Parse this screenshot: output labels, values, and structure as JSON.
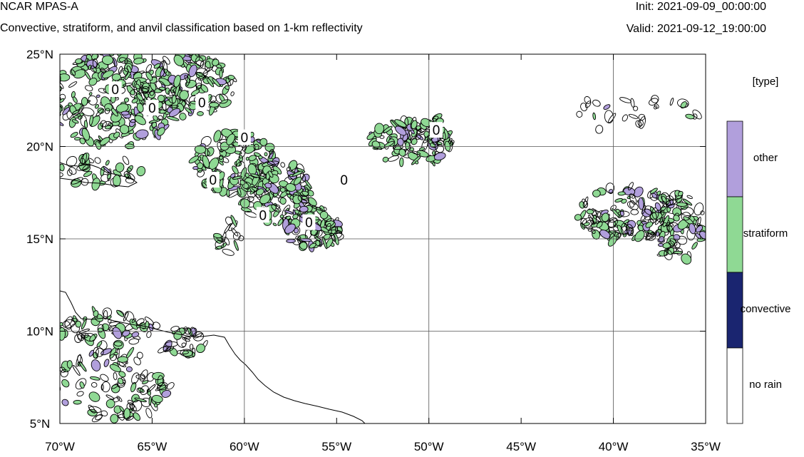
{
  "header": {
    "model": "NCAR MPAS-A",
    "description": "Convective, stratiform, and anvil classification based on 1-km reflectivity",
    "init": "Init: 2021-09-09_00:00:00",
    "valid": "Valid: 2021-09-12_19:00:00"
  },
  "map": {
    "lon_range": [
      -70,
      -35
    ],
    "lat_range": [
      5,
      25
    ],
    "lon_ticks": [
      {
        "value": -70,
        "label": "70°W"
      },
      {
        "value": -65,
        "label": "65°W"
      },
      {
        "value": -60,
        "label": "60°W"
      },
      {
        "value": -55,
        "label": "55°W"
      },
      {
        "value": -50,
        "label": "50°W"
      },
      {
        "value": -45,
        "label": "45°W"
      },
      {
        "value": -40,
        "label": "40°W"
      },
      {
        "value": -35,
        "label": "35°W"
      }
    ],
    "lat_ticks": [
      {
        "value": 25,
        "label": "25°N"
      },
      {
        "value": 20,
        "label": "20°N"
      },
      {
        "value": 15,
        "label": "15°N"
      },
      {
        "value": 10,
        "label": "10°N"
      },
      {
        "value": 5,
        "label": "5°N"
      }
    ],
    "grid_lons": [
      -60,
      -50,
      -40
    ],
    "grid_lats": [
      20,
      15,
      10
    ],
    "contour_label": "0",
    "contour_labels": [
      {
        "lon": -67.0,
        "lat": 23.1
      },
      {
        "lon": -65.0,
        "lat": 22.1
      },
      {
        "lon": -62.3,
        "lat": 22.4
      },
      {
        "lon": -60.0,
        "lat": 20.5
      },
      {
        "lon": -61.7,
        "lat": 18.2
      },
      {
        "lon": -59.0,
        "lat": 16.3
      },
      {
        "lon": -56.5,
        "lat": 15.9
      },
      {
        "lon": -54.6,
        "lat": 18.2
      },
      {
        "lon": -49.6,
        "lat": 20.9
      }
    ]
  },
  "legend": {
    "title": "[type]",
    "items": [
      {
        "label": "other",
        "color": "#b19fdc"
      },
      {
        "label": "stratiform",
        "color": "#8fd994"
      },
      {
        "label": "convective",
        "color": "#1a2570"
      },
      {
        "label": "no rain",
        "color": "#ffffff"
      }
    ]
  }
}
